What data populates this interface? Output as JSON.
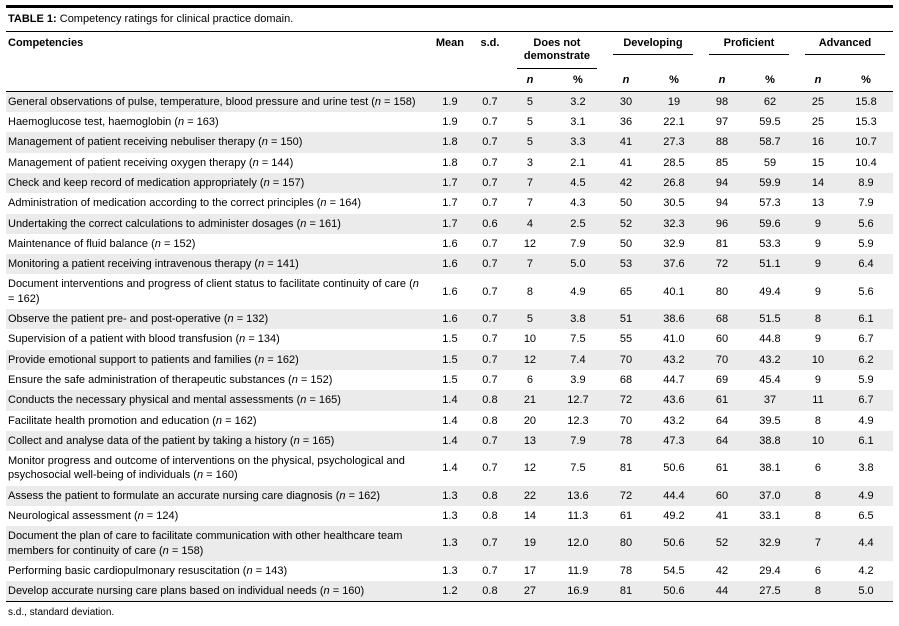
{
  "page": {
    "title_label": "TABLE 1:",
    "title_text": "Competency ratings for clinical practice domain.",
    "footnote": "s.d., standard deviation."
  },
  "columns": {
    "competencies": "Competencies",
    "mean": "Mean",
    "sd": "s.d.",
    "group_labels": [
      "Does not demonstrate",
      "Developing",
      "Proficient",
      "Advanced"
    ],
    "sub_n": "n",
    "sub_percent": "%"
  },
  "rows": [
    {
      "text": "General observations of pulse, temperature, blood pressure and urine test",
      "n": "158",
      "mean": "1.9",
      "sd": "0.7",
      "values": [
        "5",
        "3.2",
        "30",
        "19",
        "98",
        "62",
        "25",
        "15.8"
      ]
    },
    {
      "text": "Haemoglucose test, haemoglobin",
      "n": "163",
      "mean": "1.9",
      "sd": "0.7",
      "values": [
        "5",
        "3.1",
        "36",
        "22.1",
        "97",
        "59.5",
        "25",
        "15.3"
      ]
    },
    {
      "text": "Management of patient receiving nebuliser therapy",
      "n": "150",
      "mean": "1.8",
      "sd": "0.7",
      "values": [
        "5",
        "3.3",
        "41",
        "27.3",
        "88",
        "58.7",
        "16",
        "10.7"
      ]
    },
    {
      "text": "Management of patient receiving oxygen therapy",
      "n": "144",
      "mean": "1.8",
      "sd": "0.7",
      "values": [
        "3",
        "2.1",
        "41",
        "28.5",
        "85",
        "59",
        "15",
        "10.4"
      ]
    },
    {
      "text": "Check and keep record of medication appropriately",
      "n": "157",
      "mean": "1.7",
      "sd": "0.7",
      "values": [
        "7",
        "4.5",
        "42",
        "26.8",
        "94",
        "59.9",
        "14",
        "8.9"
      ]
    },
    {
      "text": "Administration of medication according to the correct principles",
      "n": "164",
      "mean": "1.7",
      "sd": "0.7",
      "values": [
        "7",
        "4.3",
        "50",
        "30.5",
        "94",
        "57.3",
        "13",
        "7.9"
      ]
    },
    {
      "text": "Undertaking the correct calculations to administer dosages",
      "n": "161",
      "mean": "1.7",
      "sd": "0.6",
      "values": [
        "4",
        "2.5",
        "52",
        "32.3",
        "96",
        "59.6",
        "9",
        "5.6"
      ]
    },
    {
      "text": "Maintenance of fluid balance",
      "n": "152",
      "mean": "1.6",
      "sd": "0.7",
      "values": [
        "12",
        "7.9",
        "50",
        "32.9",
        "81",
        "53.3",
        "9",
        "5.9"
      ]
    },
    {
      "text": "Monitoring a patient receiving intravenous therapy",
      "n": "141",
      "mean": "1.6",
      "sd": "0.7",
      "values": [
        "7",
        "5.0",
        "53",
        "37.6",
        "72",
        "51.1",
        "9",
        "6.4"
      ]
    },
    {
      "text": "Document interventions and progress of client status to facilitate continuity of care",
      "n": "162",
      "mean": "1.6",
      "sd": "0.7",
      "values": [
        "8",
        "4.9",
        "65",
        "40.1",
        "80",
        "49.4",
        "9",
        "5.6"
      ]
    },
    {
      "text": "Observe the patient pre- and post-operative",
      "n": "132",
      "mean": "1.6",
      "sd": "0.7",
      "values": [
        "5",
        "3.8",
        "51",
        "38.6",
        "68",
        "51.5",
        "8",
        "6.1"
      ]
    },
    {
      "text": "Supervision of a patient with blood transfusion",
      "n": "134",
      "mean": "1.5",
      "sd": "0.7",
      "values": [
        "10",
        "7.5",
        "55",
        "41.0",
        "60",
        "44.8",
        "9",
        "6.7"
      ]
    },
    {
      "text": "Provide emotional support to patients and families",
      "n": "162",
      "mean": "1.5",
      "sd": "0.7",
      "values": [
        "12",
        "7.4",
        "70",
        "43.2",
        "70",
        "43.2",
        "10",
        "6.2"
      ]
    },
    {
      "text": "Ensure the safe administration of therapeutic substances",
      "n": "152",
      "mean": "1.5",
      "sd": "0.7",
      "values": [
        "6",
        "3.9",
        "68",
        "44.7",
        "69",
        "45.4",
        "9",
        "5.9"
      ]
    },
    {
      "text": "Conducts the necessary physical and mental assessments",
      "n": "165",
      "mean": "1.4",
      "sd": "0.8",
      "values": [
        "21",
        "12.7",
        "72",
        "43.6",
        "61",
        "37",
        "11",
        "6.7"
      ]
    },
    {
      "text": "Facilitate health promotion and education",
      "n": "162",
      "mean": "1.4",
      "sd": "0.8",
      "values": [
        "20",
        "12.3",
        "70",
        "43.2",
        "64",
        "39.5",
        "8",
        "4.9"
      ]
    },
    {
      "text": "Collect and analyse data of the patient by taking a history",
      "n": "165",
      "mean": "1.4",
      "sd": "0.7",
      "values": [
        "13",
        "7.9",
        "78",
        "47.3",
        "64",
        "38.8",
        "10",
        "6.1"
      ]
    },
    {
      "text": "Monitor progress and outcome of interventions on the physical, psychological and psychosocial well-being of individuals",
      "n": "160",
      "mean": "1.4",
      "sd": "0.7",
      "values": [
        "12",
        "7.5",
        "81",
        "50.6",
        "61",
        "38.1",
        "6",
        "3.8"
      ]
    },
    {
      "text": "Assess the patient to formulate an accurate nursing care diagnosis",
      "n": "162",
      "mean": "1.3",
      "sd": "0.8",
      "values": [
        "22",
        "13.6",
        "72",
        "44.4",
        "60",
        "37.0",
        "8",
        "4.9"
      ]
    },
    {
      "text": "Neurological assessment",
      "n": "124",
      "mean": "1.3",
      "sd": "0.8",
      "values": [
        "14",
        "11.3",
        "61",
        "49.2",
        "41",
        "33.1",
        "8",
        "6.5"
      ]
    },
    {
      "text": "Document the plan of care to facilitate communication with other healthcare team members for continuity of care",
      "n": "158",
      "mean": "1.3",
      "sd": "0.7",
      "values": [
        "19",
        "12.0",
        "80",
        "50.6",
        "52",
        "32.9",
        "7",
        "4.4"
      ]
    },
    {
      "text": "Performing basic cardiopulmonary resuscitation",
      "n": "143",
      "mean": "1.3",
      "sd": "0.7",
      "values": [
        "17",
        "11.9",
        "78",
        "54.5",
        "42",
        "29.4",
        "6",
        "4.2"
      ]
    },
    {
      "text": "Develop accurate nursing care plans based on individual needs",
      "n": "160",
      "mean": "1.2",
      "sd": "0.8",
      "values": [
        "27",
        "16.9",
        "81",
        "50.6",
        "44",
        "27.5",
        "8",
        "5.0"
      ]
    }
  ]
}
